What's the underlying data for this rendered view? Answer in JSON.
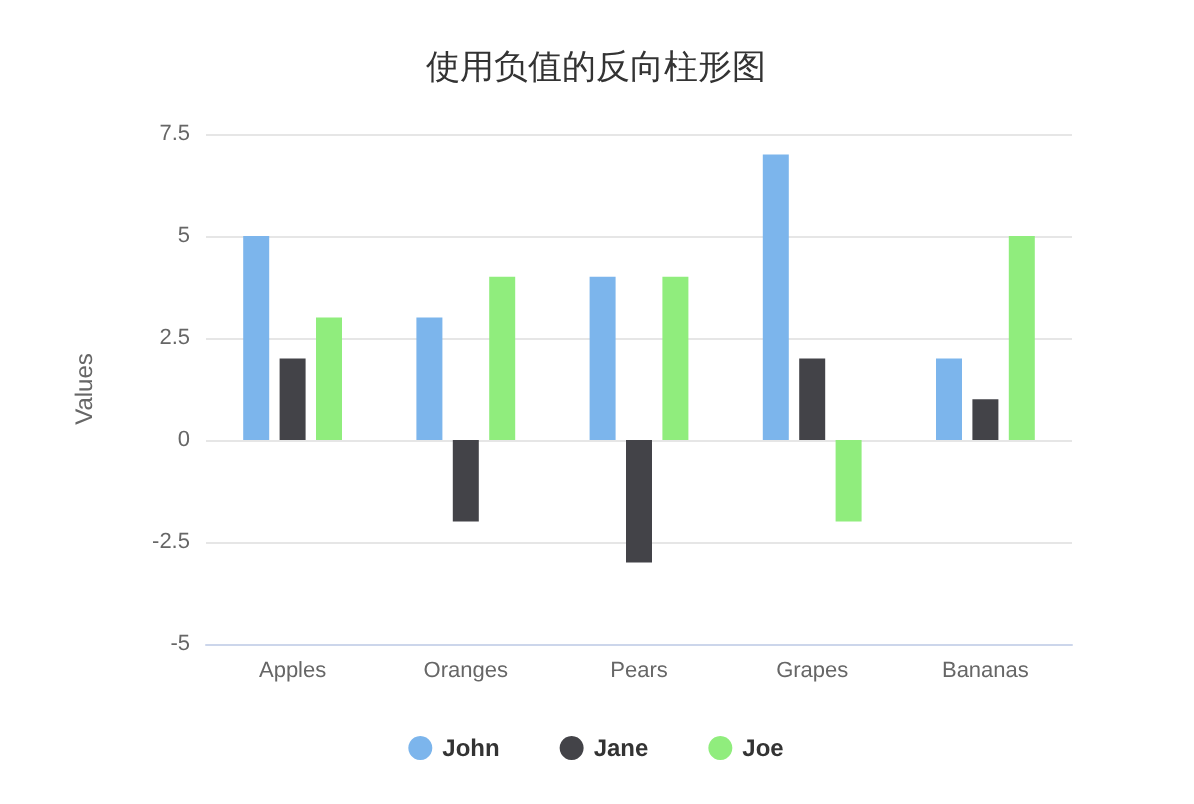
{
  "chart_data": {
    "type": "bar",
    "title": "使用负值的反向柱形图",
    "ylabel": "Values",
    "categories": [
      "Apples",
      "Oranges",
      "Pears",
      "Grapes",
      "Bananas"
    ],
    "series": [
      {
        "name": "John",
        "color": "#7cb5ec",
        "values": [
          5,
          3,
          4,
          7,
          2
        ]
      },
      {
        "name": "Jane",
        "color": "#434348",
        "values": [
          2,
          -2,
          -3,
          2,
          1
        ]
      },
      {
        "name": "Joe",
        "color": "#90ed7d",
        "values": [
          3,
          4,
          4,
          -2,
          5
        ]
      }
    ],
    "ylim": [
      -5,
      7.5
    ],
    "yticks": [
      -5,
      -2.5,
      0,
      2.5,
      5,
      7.5
    ],
    "grid": "y",
    "legend": "bottom"
  }
}
